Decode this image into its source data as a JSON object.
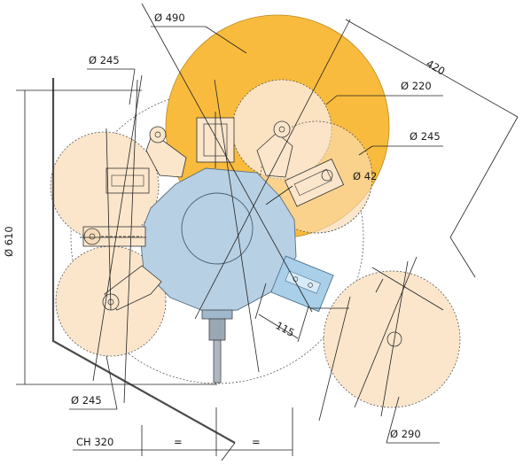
{
  "labels": {
    "d490": "Ø 490",
    "d245_top": "Ø 245",
    "d220": "Ø 220",
    "d245_right": "Ø 245",
    "d42": "Ø 42",
    "d610": "Ø 610",
    "d245_bottom": "Ø 245",
    "d290": "Ø 290",
    "dim420": "420",
    "dim115": "115",
    "ch320": "CH 320",
    "eq1": "=",
    "eq2": "="
  },
  "colors": {
    "orange_main": "#f8bb3d",
    "peach": "#fbe6cc",
    "peach_dark": "#f7dcba",
    "blue_body": "#b7d0e4",
    "blue_block": "#a9cfe9",
    "line": "#222222",
    "frame": "#4a4a4a"
  }
}
